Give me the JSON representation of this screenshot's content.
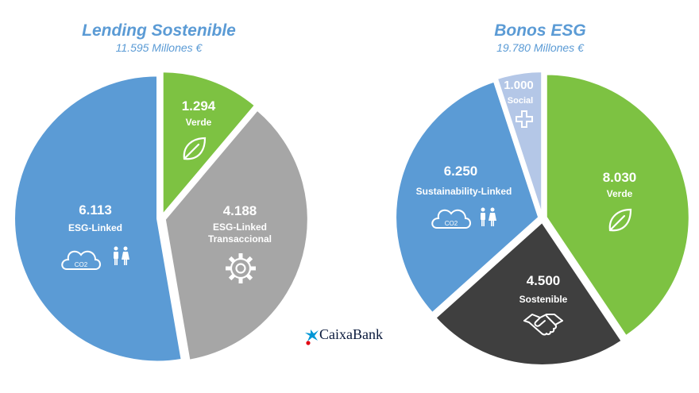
{
  "chart_data": [
    {
      "type": "pie",
      "title": "Lending Sostenible",
      "subtitle": "11.595 Millones €",
      "slices": [
        {
          "value_label": "1.294",
          "label": "Verde",
          "value": 1294,
          "color": "#7dc242",
          "icon": "leaf-icon"
        },
        {
          "value_label": "4.188",
          "label": "ESG-Linked Transaccional",
          "label_lines": [
            "ESG-Linked",
            "Transaccional"
          ],
          "value": 4188,
          "color": "#a6a6a6",
          "icon": "gear-icon"
        },
        {
          "value_label": "6.113",
          "label": "ESG-Linked",
          "value": 6113,
          "color": "#5b9bd5",
          "icon": "co2-cloud-people-icon"
        }
      ]
    },
    {
      "type": "pie",
      "title": "Bonos ESG",
      "subtitle": "19.780 Millones €",
      "slices": [
        {
          "value_label": "8.030",
          "label": "Verde",
          "value": 8030,
          "color": "#7dc242",
          "icon": "leaf-icon"
        },
        {
          "value_label": "4.500",
          "label": "Sostenible",
          "value": 4500,
          "color": "#3f3f3f",
          "icon": "handshake-icon"
        },
        {
          "value_label": "6.250",
          "label": "Sustainability-Linked",
          "value": 6250,
          "color": "#5b9bd5",
          "icon": "co2-cloud-people-icon"
        },
        {
          "value_label": "1.000",
          "label": "Social",
          "value": 1000,
          "color": "#b4c7e7",
          "icon": "cross-icon"
        }
      ]
    }
  ],
  "icon_text": {
    "co2": "CO2"
  },
  "logo": {
    "name": "CaixaBank",
    "icon": "caixabank-star-icon",
    "colors": [
      "#0097d6",
      "#e30613"
    ]
  }
}
